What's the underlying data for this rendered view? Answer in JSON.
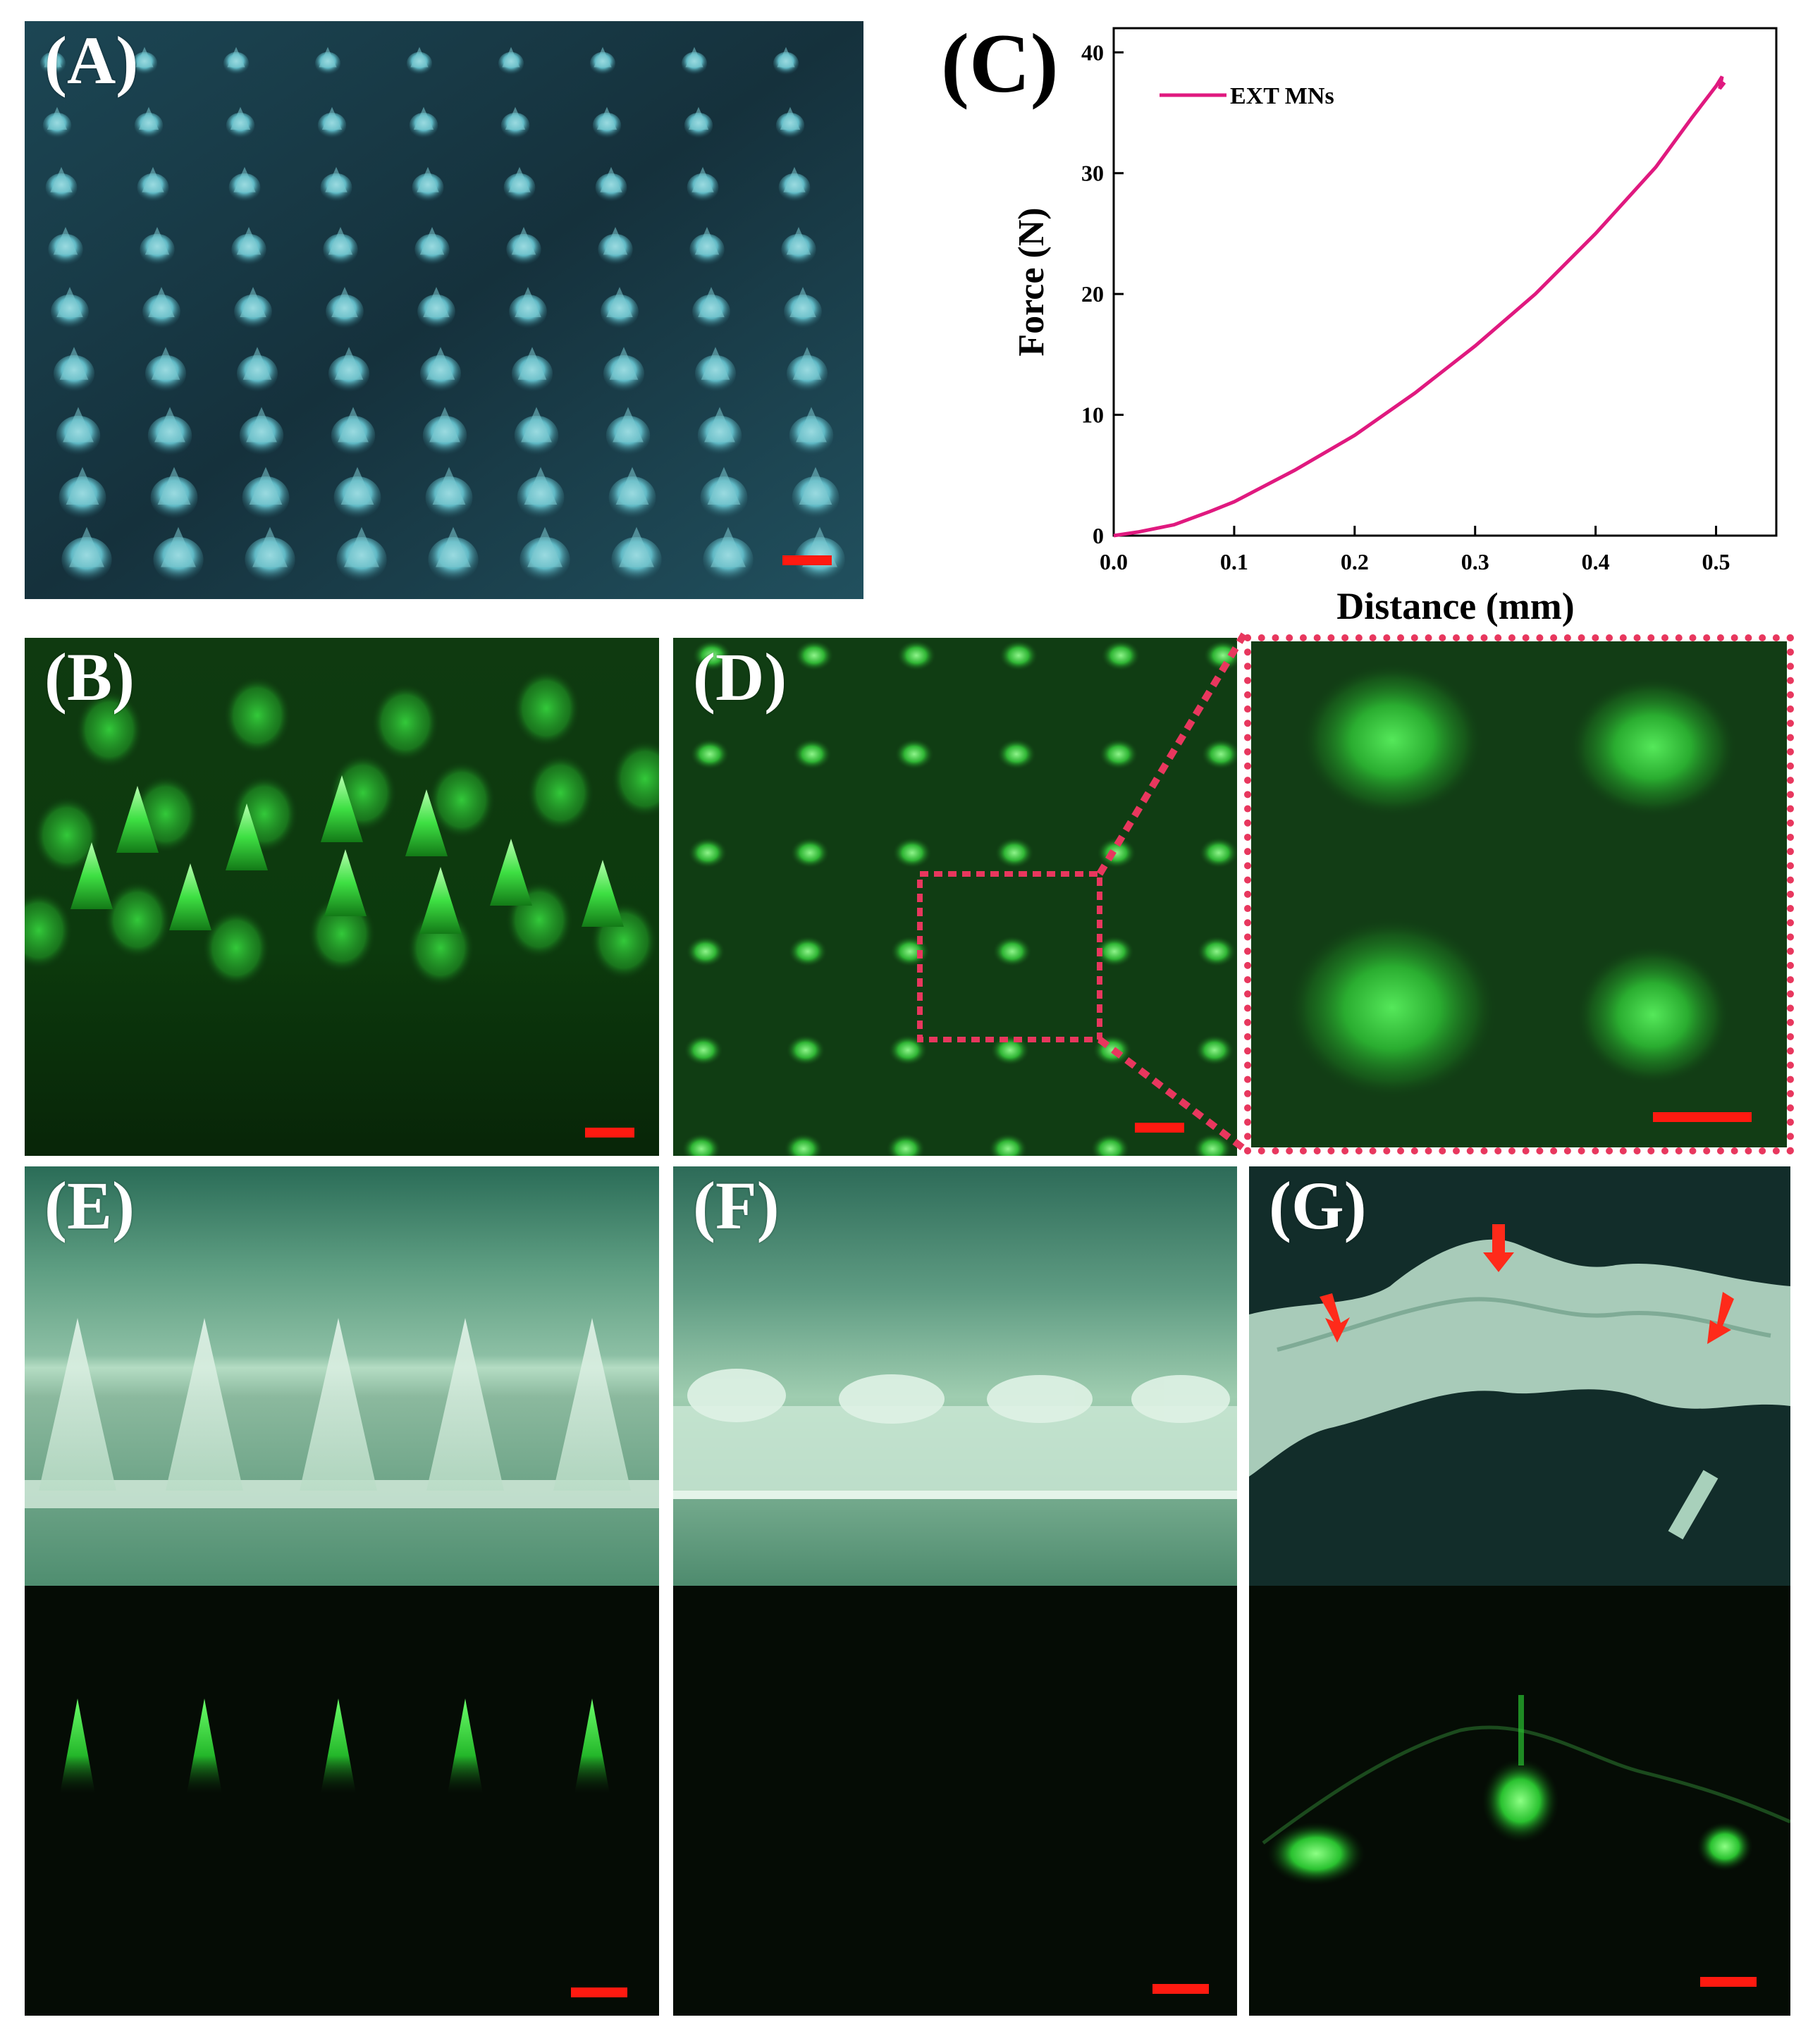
{
  "figure": {
    "panels": {
      "A": {
        "label": "(A)"
      },
      "B": {
        "label": "(B)"
      },
      "C": {
        "label": "(C)"
      },
      "D": {
        "label": "(D)"
      },
      "E": {
        "label": "(E)"
      },
      "F": {
        "label": "(F)"
      },
      "G": {
        "label": "(G)"
      }
    }
  },
  "colors": {
    "accent_line": "#e0197f",
    "scale_bar": "#ff1a10",
    "zoom_box": "#e8375e",
    "fluorescence": "#35d23f"
  },
  "chart_data": {
    "type": "line",
    "title": "",
    "xlabel": "Distance (mm)",
    "ylabel": "Force (N)",
    "xlim": [
      0.0,
      0.55
    ],
    "ylim": [
      0,
      42
    ],
    "xticks": [
      "0.0",
      "0.1",
      "0.2",
      "0.3",
      "0.4",
      "0.5"
    ],
    "yticks": [
      "0",
      "10",
      "20",
      "30",
      "40"
    ],
    "legend": "top-left",
    "grid": false,
    "series": [
      {
        "name": "EXT MNs",
        "color": "#e0197f",
        "x": [
          0.0,
          0.02,
          0.05,
          0.08,
          0.1,
          0.15,
          0.2,
          0.25,
          0.3,
          0.35,
          0.4,
          0.45,
          0.48,
          0.5,
          0.505,
          0.503,
          0.507
        ],
        "y": [
          0,
          0.3,
          0.9,
          2.0,
          2.8,
          5.4,
          8.3,
          11.8,
          15.7,
          20.0,
          25.0,
          30.5,
          34.6,
          37.2,
          38.0,
          37.0,
          37.5
        ]
      }
    ]
  }
}
